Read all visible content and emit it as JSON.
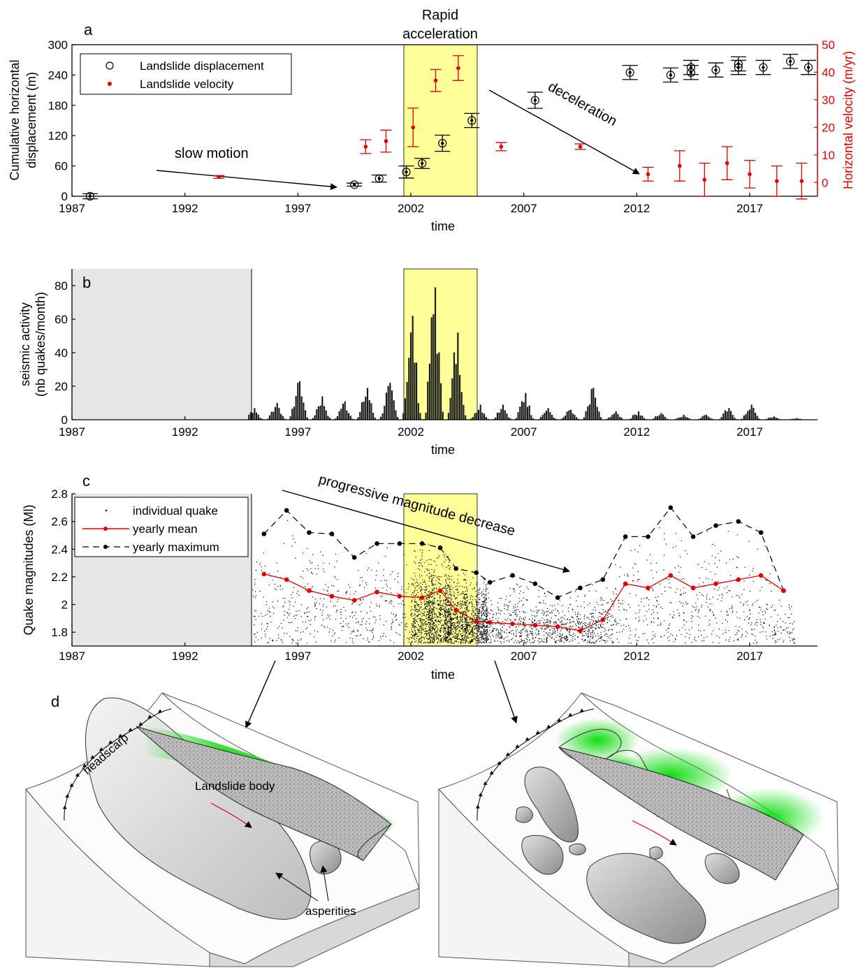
{
  "figure": {
    "highlight_label_line1": "Rapid",
    "highlight_label_line2": "acceleration",
    "highlight_range": [
      2001.7,
      2004.9
    ],
    "highlight_color": "#ffff99",
    "nodata_color": "#e6e6e6",
    "accent_red": "#e00000",
    "green": "#22dd22"
  },
  "chart_data": [
    {
      "panel": "a",
      "type": "scatter",
      "xlabel": "time",
      "ylabel_line1": "Cumulative horizontal",
      "ylabel_line2": "displacement (m)",
      "y2label": "Horizontal velocity (m/yr)",
      "xlim": [
        1987,
        2020
      ],
      "ylim": [
        0,
        300
      ],
      "y2lim": [
        -5,
        50
      ],
      "xticks": [
        "1987",
        "1992",
        "1997",
        "2002",
        "2007",
        "2012",
        "2017"
      ],
      "yticks": [
        "0",
        "60",
        "120",
        "180",
        "240",
        "300"
      ],
      "y2ticks": [
        "0",
        "10",
        "20",
        "30",
        "40",
        "50"
      ],
      "legend": [
        "Landslide displacement",
        "Landslide velocity"
      ],
      "annotations": [
        "slow motion",
        "deceleration"
      ],
      "displacement": [
        {
          "x": 1987.8,
          "y": 0,
          "err": 5
        },
        {
          "x": 1999.5,
          "y": 23,
          "err": 3
        },
        {
          "x": 2000.6,
          "y": 35,
          "err": 7
        },
        {
          "x": 2001.8,
          "y": 48,
          "err": 12
        },
        {
          "x": 2002.5,
          "y": 65,
          "err": 10
        },
        {
          "x": 2003.4,
          "y": 105,
          "err": 16
        },
        {
          "x": 2004.7,
          "y": 150,
          "err": 14
        },
        {
          "x": 2007.5,
          "y": 190,
          "err": 16
        },
        {
          "x": 2011.7,
          "y": 245,
          "err": 14
        },
        {
          "x": 2013.5,
          "y": 240,
          "err": 14
        },
        {
          "x": 2014.4,
          "y": 245,
          "err": 14
        },
        {
          "x": 2014.4,
          "y": 255,
          "err": 14
        },
        {
          "x": 2015.5,
          "y": 250,
          "err": 14
        },
        {
          "x": 2016.5,
          "y": 255,
          "err": 14
        },
        {
          "x": 2016.5,
          "y": 262,
          "err": 14
        },
        {
          "x": 2017.6,
          "y": 255,
          "err": 14
        },
        {
          "x": 2018.8,
          "y": 267,
          "err": 14
        },
        {
          "x": 2019.6,
          "y": 255,
          "err": 14
        }
      ],
      "velocity": [
        {
          "x": 1993.5,
          "y": 2,
          "err": 0.5
        },
        {
          "x": 2000.0,
          "y": 13,
          "err": 2.5
        },
        {
          "x": 2000.9,
          "y": 15,
          "err": 4
        },
        {
          "x": 2002.1,
          "y": 20,
          "err": 7
        },
        {
          "x": 2003.1,
          "y": 37,
          "err": 4
        },
        {
          "x": 2004.1,
          "y": 41.5,
          "err": 4.5
        },
        {
          "x": 2006.0,
          "y": 13,
          "err": 1.5
        },
        {
          "x": 2009.5,
          "y": 13,
          "err": 1
        },
        {
          "x": 2012.5,
          "y": 3,
          "err": 2.5
        },
        {
          "x": 2013.9,
          "y": 6,
          "err": 5.5
        },
        {
          "x": 2015.0,
          "y": 1,
          "err": 6
        },
        {
          "x": 2016.0,
          "y": 7,
          "err": 6
        },
        {
          "x": 2017.0,
          "y": 3,
          "err": 5
        },
        {
          "x": 2018.2,
          "y": 0.5,
          "err": 5.5
        },
        {
          "x": 2019.3,
          "y": 0.5,
          "err": 6.5
        }
      ]
    },
    {
      "panel": "b",
      "type": "bar",
      "xlabel": "time",
      "ylabel_line1": "seismic activity",
      "ylabel_line2": "(nb quakes/month)",
      "xlim": [
        1987,
        2020
      ],
      "ylim": [
        0,
        90
      ],
      "xticks": [
        "1987",
        "1992",
        "1997",
        "2002",
        "2007",
        "2012",
        "2017"
      ],
      "yticks": [
        "0",
        "20",
        "40",
        "60",
        "80"
      ],
      "nodata_before": 1994.8,
      "yearly_peaks": [
        {
          "year": 1995,
          "peak": 7
        },
        {
          "year": 1996,
          "peak": 10
        },
        {
          "year": 1997,
          "peak": 23
        },
        {
          "year": 1998,
          "peak": 14
        },
        {
          "year": 1999,
          "peak": 11
        },
        {
          "year": 2000,
          "peak": 19
        },
        {
          "year": 2001,
          "peak": 22
        },
        {
          "year": 2002,
          "peak": 62
        },
        {
          "year": 2003,
          "peak": 79
        },
        {
          "year": 2004,
          "peak": 52
        },
        {
          "year": 2005,
          "peak": 9
        },
        {
          "year": 2006,
          "peak": 9
        },
        {
          "year": 2007,
          "peak": 16
        },
        {
          "year": 2008,
          "peak": 7
        },
        {
          "year": 2009,
          "peak": 6
        },
        {
          "year": 2010,
          "peak": 19
        },
        {
          "year": 2011,
          "peak": 5
        },
        {
          "year": 2012,
          "peak": 5
        },
        {
          "year": 2013,
          "peak": 4
        },
        {
          "year": 2014,
          "peak": 3
        },
        {
          "year": 2015,
          "peak": 3
        },
        {
          "year": 2016,
          "peak": 7
        },
        {
          "year": 2017,
          "peak": 9
        },
        {
          "year": 2018,
          "peak": 2
        },
        {
          "year": 2019,
          "peak": 1
        }
      ]
    },
    {
      "panel": "c",
      "type": "line",
      "xlabel": "time",
      "ylabel": "Quake magnitudes (Ml)",
      "xlim": [
        1987,
        2020
      ],
      "ylim": [
        1.7,
        2.8
      ],
      "xticks": [
        "1987",
        "1992",
        "1997",
        "2002",
        "2007",
        "2012",
        "2017"
      ],
      "yticks": [
        "1.8",
        "2",
        "2.2",
        "2.4",
        "2.6",
        "2.8"
      ],
      "nodata_before": 1994.8,
      "legend": [
        "individual quake",
        "yearly mean",
        "yearly maximum"
      ],
      "annotation": "progressive magnitude decrease",
      "series": [
        {
          "name": "yearly mean",
          "x": [
            1995.5,
            1996.5,
            1997.5,
            1998.5,
            1999.5,
            2000.5,
            2001.5,
            2002.5,
            2003.3,
            2004.0,
            2004.9,
            2005.5,
            2006.5,
            2007.5,
            2008.5,
            2009.5,
            2010.5,
            2011.5,
            2012.5,
            2013.5,
            2014.5,
            2015.5,
            2016.5,
            2017.5,
            2018.5
          ],
          "y": [
            2.22,
            2.18,
            2.1,
            2.06,
            2.03,
            2.09,
            2.06,
            2.05,
            2.1,
            1.96,
            1.88,
            1.87,
            1.86,
            1.85,
            1.84,
            1.81,
            1.89,
            2.15,
            2.12,
            2.21,
            2.12,
            2.15,
            2.18,
            2.21,
            2.1
          ]
        },
        {
          "name": "yearly maximum",
          "x": [
            1995.5,
            1996.5,
            1997.5,
            1998.5,
            1999.5,
            2000.5,
            2001.5,
            2002.5,
            2003.3,
            2004.0,
            2004.9,
            2005.5,
            2006.5,
            2007.5,
            2008.5,
            2009.5,
            2010.5,
            2011.5,
            2012.5,
            2013.5,
            2014.5,
            2015.5,
            2016.5,
            2017.5,
            2018.5
          ],
          "y": [
            2.51,
            2.68,
            2.52,
            2.51,
            2.34,
            2.44,
            2.44,
            2.44,
            2.41,
            2.26,
            2.23,
            2.16,
            2.21,
            2.15,
            2.05,
            2.12,
            2.18,
            2.49,
            2.49,
            2.7,
            2.49,
            2.57,
            2.6,
            2.52,
            2.1
          ]
        }
      ]
    }
  ],
  "sketch": {
    "panel_letter": "d",
    "headscarp_label": "headscarp",
    "body_label": "Landslide body",
    "asperities_label": "asperities"
  }
}
